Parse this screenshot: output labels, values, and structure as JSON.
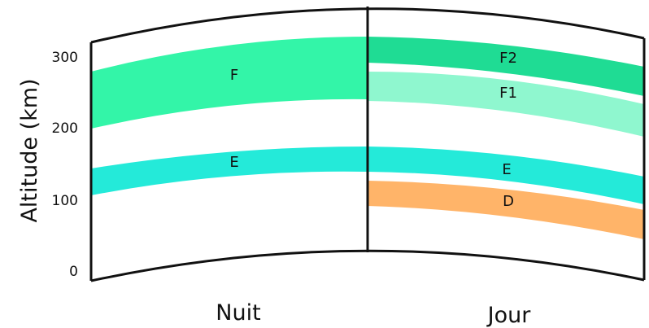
{
  "y_axis": {
    "title": "Altitude (km)",
    "ticks": [
      "0",
      "100",
      "200",
      "300"
    ]
  },
  "periods": {
    "night": "Nuit",
    "day": "Jour"
  },
  "layers": {
    "night": [
      {
        "label": "F",
        "color": "#33f5a8"
      },
      {
        "label": "E",
        "color": "#24ead9"
      }
    ],
    "day": [
      {
        "label": "F2",
        "color": "#1fdc94"
      },
      {
        "label": "F1",
        "color": "#8ff7cf"
      },
      {
        "label": "E",
        "color": "#24ead9"
      },
      {
        "label": "D",
        "color": "#ffb469"
      }
    ]
  },
  "colors": {
    "outline": "#111111",
    "background": "#ffffff"
  }
}
